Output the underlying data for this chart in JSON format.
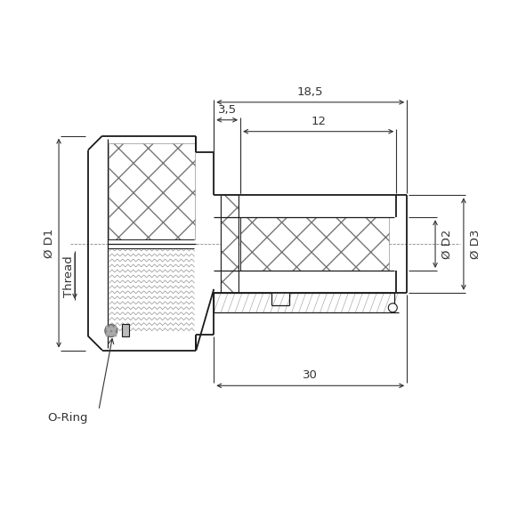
{
  "bg_color": "#ffffff",
  "line_color": "#1a1a1a",
  "dim_color": "#333333",
  "annotations": {
    "dim_18_5": "18,5",
    "dim_3_5": "3,5",
    "dim_12": "12",
    "dim_30": "30",
    "label_D1": "Ø D1",
    "label_Thread": "Thread",
    "label_D2": "Ø D2",
    "label_D3": "Ø D3",
    "label_oring": "O-Ring"
  }
}
